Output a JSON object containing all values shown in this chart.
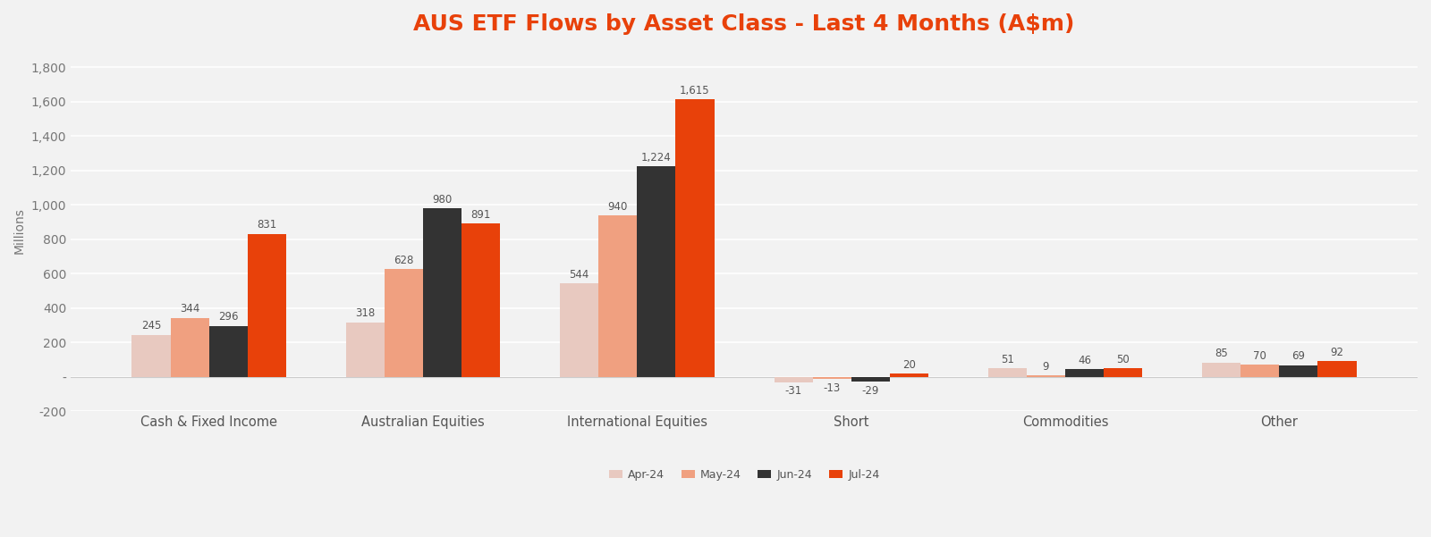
{
  "title": "AUS ETF Flows by Asset Class - Last 4 Months (A$m)",
  "title_color": "#e8410a",
  "title_fontsize": 18,
  "categories": [
    "Cash & Fixed Income",
    "Australian Equities",
    "International Equities",
    "Short",
    "Commodities",
    "Other"
  ],
  "series": {
    "Apr-24": [
      245,
      318,
      544,
      -31,
      51,
      85
    ],
    "May-24": [
      344,
      628,
      940,
      -13,
      9,
      70
    ],
    "Jun-24": [
      296,
      980,
      1224,
      -29,
      46,
      69
    ],
    "Jul-24": [
      831,
      891,
      1615,
      20,
      50,
      92
    ]
  },
  "series_order": [
    "Apr-24",
    "May-24",
    "Jun-24",
    "Jul-24"
  ],
  "colors": {
    "Apr-24": "#e8c9c0",
    "May-24": "#f0a080",
    "Jun-24": "#333333",
    "Jul-24": "#e8410a"
  },
  "ylabel": "Millions",
  "ylim": [
    -200,
    1900
  ],
  "yticks": [
    -200,
    0,
    200,
    400,
    600,
    800,
    1000,
    1200,
    1400,
    1600,
    1800
  ],
  "ytick_labels": [
    "-200",
    "-",
    "200",
    "400",
    "600",
    "800",
    "1,000",
    "1,200",
    "1,400",
    "1,600",
    "1,800"
  ],
  "background_color": "#f2f2f2",
  "plot_background_color": "#f2f2f2",
  "grid_color": "#ffffff",
  "bar_width": 0.18,
  "label_fontsize": 8.5,
  "axis_fontsize": 10,
  "legend_fontsize": 9
}
